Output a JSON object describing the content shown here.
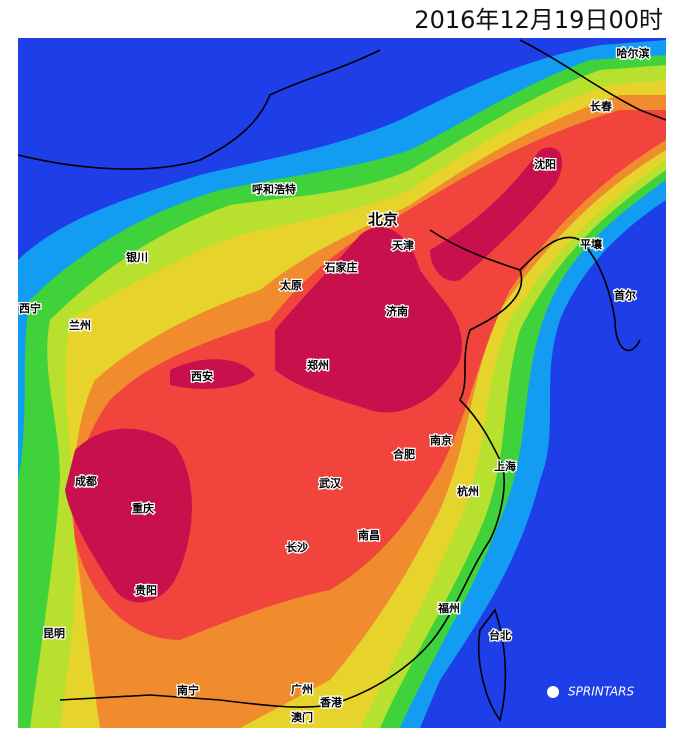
{
  "title": "2016年12月19日00时",
  "cities": [
    {
      "label": "哈尔滨"
    },
    {
      "label": "长春"
    },
    {
      "label": "沈阳"
    },
    {
      "label": "呼和浩特"
    },
    {
      "label": "北京"
    },
    {
      "label": "天津"
    },
    {
      "label": "银川"
    },
    {
      "label": "石家庄"
    },
    {
      "label": "平壤"
    },
    {
      "label": "太原"
    },
    {
      "label": "西宁"
    },
    {
      "label": "兰州"
    },
    {
      "label": "济南"
    },
    {
      "label": "首尔"
    },
    {
      "label": "郑州"
    },
    {
      "label": "西安"
    },
    {
      "label": "南京"
    },
    {
      "label": "合肥"
    },
    {
      "label": "上海"
    },
    {
      "label": "成都"
    },
    {
      "label": "杭州"
    },
    {
      "label": "武汉"
    },
    {
      "label": "重庆"
    },
    {
      "label": "南昌"
    },
    {
      "label": "长沙"
    },
    {
      "label": "贵阳"
    },
    {
      "label": "福州"
    },
    {
      "label": "台北"
    },
    {
      "label": "昆明"
    },
    {
      "label": "南宁"
    },
    {
      "label": "广州"
    },
    {
      "label": "香港"
    },
    {
      "label": "澳门"
    }
  ],
  "credit": "SPRINTARS"
}
